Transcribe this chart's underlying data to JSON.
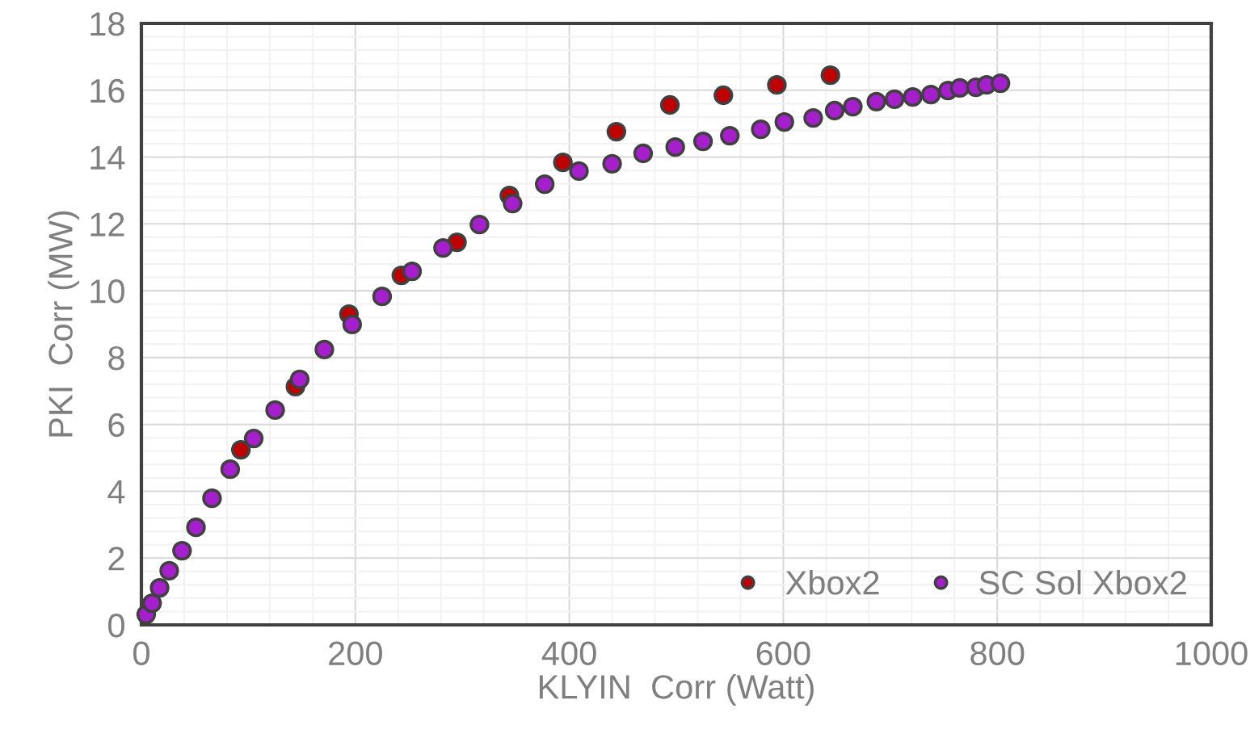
{
  "chart_data": {
    "type": "scatter",
    "xlabel": "KLYIN  Corr (Watt)",
    "ylabel": "PKI  Corr (MW)",
    "xlim": [
      0,
      1000
    ],
    "xticks": [
      0,
      200,
      400,
      600,
      800,
      1000
    ],
    "ylim": [
      0,
      18
    ],
    "yticks": [
      0,
      2,
      4,
      6,
      8,
      10,
      12,
      14,
      16,
      18
    ],
    "grid": true,
    "legend": "bottom right",
    "marker": "circle",
    "series": [
      {
        "name": "Xbox2",
        "color": "#c00000",
        "x": [
          93,
          144,
          194,
          243,
          295,
          344,
          394,
          444,
          494,
          544,
          594,
          644
        ],
        "values": [
          5.24,
          7.13,
          9.3,
          10.46,
          11.45,
          12.85,
          13.84,
          14.76,
          15.56,
          15.85,
          16.16,
          16.45
        ]
      },
      {
        "name": "SC Sol Xbox2",
        "color": "#a61fcc",
        "x": [
          4.5,
          10,
          17,
          26,
          38,
          51,
          66,
          83,
          105,
          125,
          148,
          171,
          197,
          225,
          253,
          282,
          316,
          347,
          377,
          409,
          440,
          469,
          499,
          525,
          550,
          579,
          601,
          628,
          648,
          665,
          687,
          704,
          721,
          738,
          754,
          765,
          780,
          790,
          803
        ],
        "values": [
          0.31,
          0.65,
          1.11,
          1.62,
          2.22,
          2.92,
          3.79,
          4.66,
          5.58,
          6.43,
          7.35,
          8.24,
          8.99,
          9.83,
          10.58,
          11.28,
          11.98,
          12.61,
          13.19,
          13.58,
          13.8,
          14.11,
          14.3,
          14.47,
          14.64,
          14.83,
          15.05,
          15.17,
          15.39,
          15.51,
          15.66,
          15.73,
          15.8,
          15.87,
          15.99,
          16.07,
          16.09,
          16.16,
          16.21
        ]
      }
    ]
  }
}
